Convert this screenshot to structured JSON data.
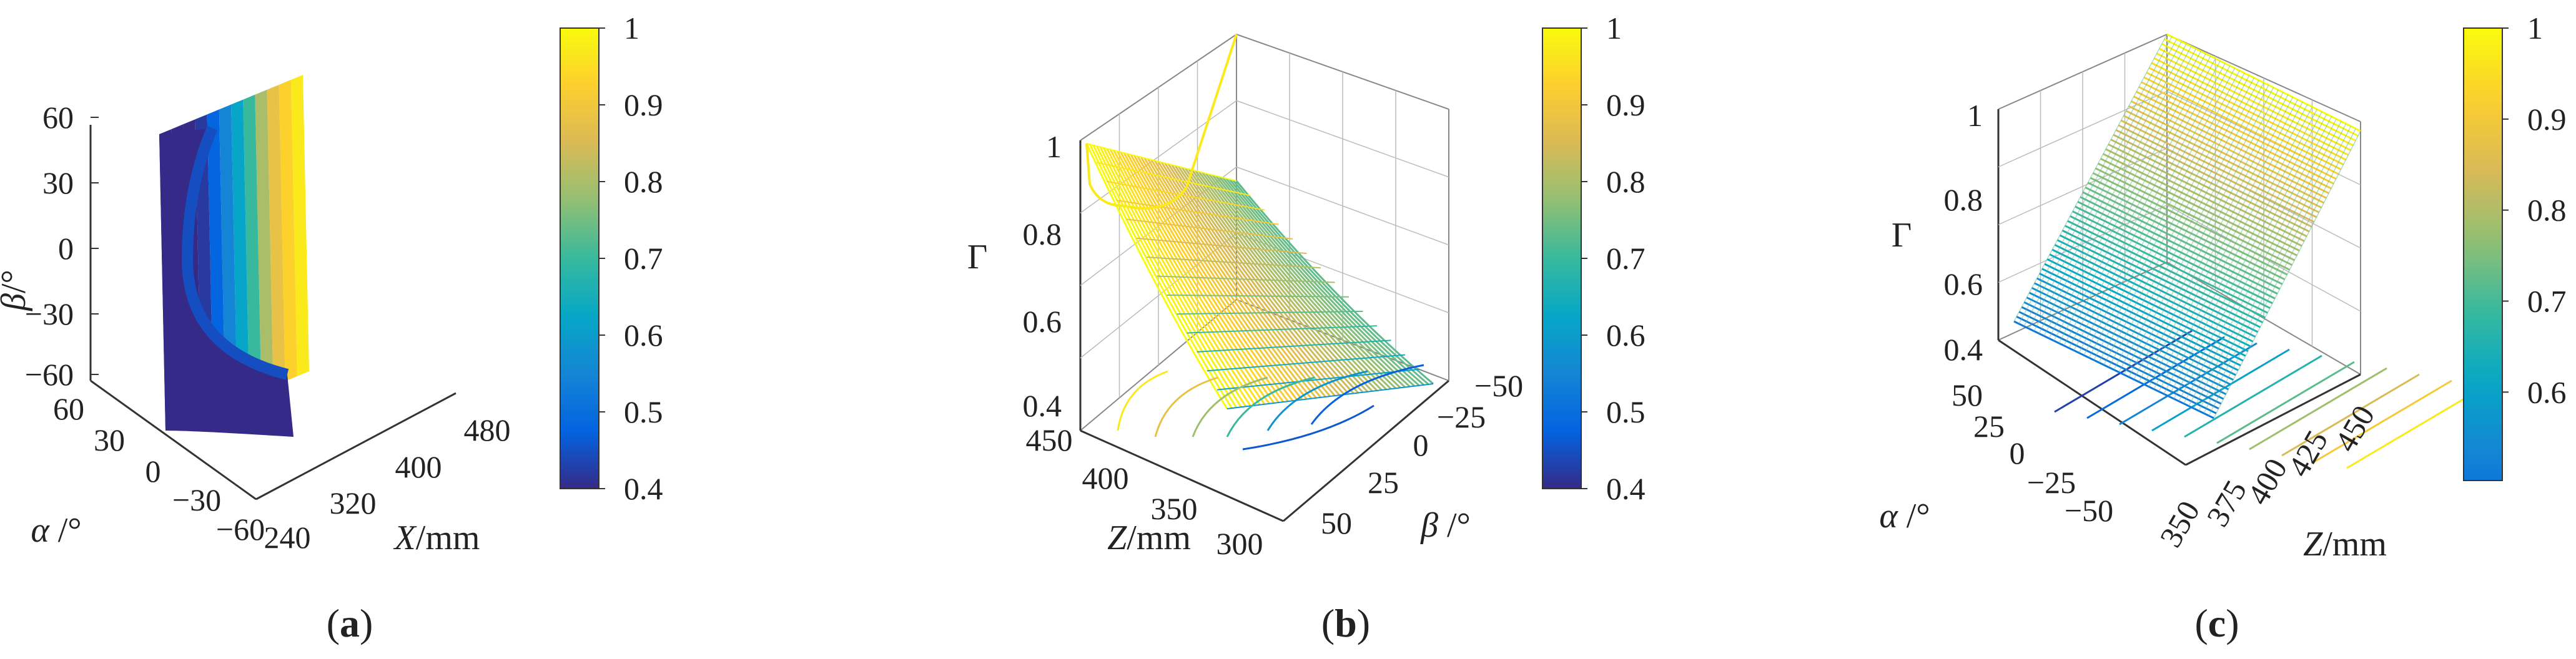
{
  "colormap": {
    "name": "parula",
    "stops": [
      "#352A87",
      "#0363E1",
      "#1485D4",
      "#06A7C6",
      "#38B99E",
      "#92BF73",
      "#D9BA56",
      "#FCCE2E",
      "#F9FB0E"
    ]
  },
  "chart_data": [
    {
      "panel": "a",
      "type": "surface",
      "caption": [
        "(",
        "a",
        ")"
      ],
      "xlabel": [
        "X",
        "/mm"
      ],
      "ylabel": [
        "α",
        " /°"
      ],
      "zlabel": [
        "β",
        "/°"
      ],
      "x_ticks": [
        "240",
        "320",
        "400",
        "480"
      ],
      "y_ticks": [
        "60",
        "30",
        "0",
        "−30",
        "−60"
      ],
      "z_ticks": [
        "60",
        "30",
        "0",
        "−30",
        "−60"
      ],
      "xlim": [
        240,
        480
      ],
      "ylim": [
        -60,
        60
      ],
      "zlim": [
        -60,
        60
      ],
      "grid": false,
      "colorbar": {
        "ticks": [
          "1",
          "0.9",
          "0.8",
          "0.7",
          "0.6",
          "0.5",
          "0.4"
        ],
        "range": [
          0.4,
          1
        ]
      },
      "bands": [
        0.4,
        0.4,
        0.4,
        0.42,
        0.48,
        0.55,
        0.62,
        0.7,
        0.8,
        0.88,
        0.93,
        0.97
      ]
    },
    {
      "panel": "b",
      "type": "surface",
      "caption": [
        "(",
        "b",
        ")"
      ],
      "xlabel": [
        "Z",
        "/mm"
      ],
      "ylabel": [
        "β",
        " /°"
      ],
      "zlabel": [
        "Γ",
        ""
      ],
      "x_ticks": [
        "450",
        "400",
        "350",
        "300"
      ],
      "y_ticks": [
        "50",
        "25",
        "0",
        "−25",
        "−50"
      ],
      "z_ticks": [
        "1",
        "0.8",
        "0.6",
        "0.4"
      ],
      "xlim": [
        300,
        450
      ],
      "ylim": [
        -50,
        50
      ],
      "zlim": [
        0.4,
        1
      ],
      "grid": true,
      "colorbar": {
        "ticks": [
          "1",
          "0.9",
          "0.8",
          "0.7",
          "0.6",
          "0.5",
          "0.4"
        ],
        "range": [
          0.4,
          1
        ]
      }
    },
    {
      "panel": "c",
      "type": "surface",
      "caption": [
        "(",
        "c",
        ")"
      ],
      "xlabel": [
        "Z",
        "/mm"
      ],
      "ylabel": [
        "α",
        " /°"
      ],
      "zlabel": [
        "Γ",
        ""
      ],
      "x_ticks": [
        "350",
        "375",
        "400",
        "425",
        "450"
      ],
      "y_ticks": [
        "50",
        "25",
        "0",
        "−25",
        "−50"
      ],
      "z_ticks": [
        "1",
        "0.8",
        "0.6",
        "0.4"
      ],
      "xlim": [
        350,
        450
      ],
      "ylim": [
        -50,
        50
      ],
      "zlim": [
        0.4,
        1
      ],
      "grid": true,
      "colorbar": {
        "ticks": [
          "1",
          "0.9",
          "0.8",
          "0.7",
          "0.6"
        ],
        "range": [
          0.52,
          1
        ]
      }
    }
  ]
}
